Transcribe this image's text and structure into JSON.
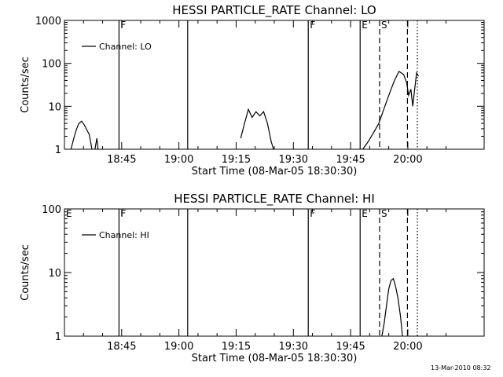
{
  "chart_data": [
    {
      "type": "line",
      "title": "HESSI PARTICLE_RATE Channel: LO",
      "xlabel": "Start Time (08-Mar-05 18:30:30)",
      "ylabel": "Counts/sec",
      "yscale": "log",
      "xlim_min": [
        0,
        110
      ],
      "ylim": [
        1,
        1000
      ],
      "yticks": [
        {
          "value": 1,
          "label": "1"
        },
        {
          "value": 10,
          "label": "10"
        },
        {
          "value": 100,
          "label": "100"
        },
        {
          "value": 1000,
          "label": "1000"
        }
      ],
      "xticks": [
        {
          "value": 15,
          "label": "18:45"
        },
        {
          "value": 30,
          "label": "19:00"
        },
        {
          "value": 45,
          "label": "19:15"
        },
        {
          "value": 60,
          "label": "19:30"
        },
        {
          "value": 75,
          "label": "19:45"
        },
        {
          "value": 90,
          "label": "20:00"
        }
      ],
      "legend": {
        "label": "Channel: LO",
        "position": "top-left"
      },
      "markers": [
        {
          "x": 14.3,
          "style": "solid",
          "label": "F"
        },
        {
          "x": 32.3,
          "style": "solid",
          "label": ""
        },
        {
          "x": 63.9,
          "style": "solid",
          "label": "F"
        },
        {
          "x": 77.5,
          "style": "solid",
          "label": "E"
        },
        {
          "x": 82.6,
          "style": "dashed",
          "label": "S"
        },
        {
          "x": 89.9,
          "style": "dashed",
          "label": ""
        },
        {
          "x": 92.5,
          "style": "dotted",
          "label": ""
        }
      ],
      "series": [
        {
          "name": "",
          "points": [
            [
              1.7,
              1
            ],
            [
              2.6,
              2
            ],
            [
              3.2,
              3
            ],
            [
              3.8,
              4
            ],
            [
              4.5,
              4.5
            ],
            [
              5.2,
              3.7
            ],
            [
              5.7,
              3
            ],
            [
              6.5,
              2.2
            ],
            [
              7.2,
              1
            ]
          ]
        },
        {
          "name": "",
          "points": [
            [
              8.0,
              1
            ],
            [
              8.5,
              1.8
            ],
            [
              8.8,
              1
            ]
          ]
        },
        {
          "name": "",
          "points": [
            [
              46.2,
              1.8
            ],
            [
              47.2,
              4
            ],
            [
              48.2,
              8.5
            ],
            [
              49.2,
              5.5
            ],
            [
              50.2,
              7.5
            ],
            [
              51.2,
              6
            ],
            [
              52.2,
              7.5
            ],
            [
              53.2,
              4
            ],
            [
              54.2,
              1.5
            ],
            [
              54.8,
              1
            ]
          ]
        },
        {
          "name": "",
          "points": [
            [
              78.2,
              1
            ],
            [
              79.6,
              1.5
            ],
            [
              81.1,
              2.5
            ],
            [
              82.4,
              4
            ],
            [
              83.8,
              9
            ],
            [
              85.2,
              20
            ],
            [
              86.5,
              40
            ],
            [
              87.7,
              65
            ],
            [
              88.9,
              55
            ],
            [
              89.7,
              35
            ],
            [
              90.2,
              18
            ],
            [
              90.8,
              25
            ],
            [
              91.3,
              10
            ],
            [
              91.8,
              25
            ],
            [
              92.3,
              60
            ],
            [
              92.8,
              50
            ]
          ]
        }
      ]
    },
    {
      "type": "line",
      "title": "HESSI PARTICLE_RATE Channel: HI",
      "xlabel": "Start Time (08-Mar-05 18:30:30)",
      "ylabel": "Counts/sec",
      "yscale": "log",
      "xlim_min": [
        0,
        110
      ],
      "ylim": [
        1,
        100
      ],
      "yticks": [
        {
          "value": 1,
          "label": "1"
        },
        {
          "value": 10,
          "label": "10"
        },
        {
          "value": 100,
          "label": "100"
        }
      ],
      "xticks": [
        {
          "value": 15,
          "label": "18:45"
        },
        {
          "value": 30,
          "label": "19:00"
        },
        {
          "value": 45,
          "label": "19:15"
        },
        {
          "value": 60,
          "label": "19:30"
        },
        {
          "value": 75,
          "label": "19:45"
        },
        {
          "value": 90,
          "label": "20:00"
        }
      ],
      "legend": {
        "label": "Channel: HI",
        "position": "top-left"
      },
      "markers": [
        {
          "x": 0,
          "style": "none",
          "label": "E"
        },
        {
          "x": 14.3,
          "style": "solid",
          "label": "F"
        },
        {
          "x": 32.3,
          "style": "solid",
          "label": ""
        },
        {
          "x": 63.9,
          "style": "solid",
          "label": "F"
        },
        {
          "x": 77.5,
          "style": "solid",
          "label": "E"
        },
        {
          "x": 82.6,
          "style": "dashed",
          "label": "S"
        },
        {
          "x": 89.9,
          "style": "dashed",
          "label": ""
        },
        {
          "x": 92.5,
          "style": "dotted",
          "label": ""
        }
      ],
      "series": [
        {
          "name": "",
          "points": [
            [
              83.2,
              1
            ],
            [
              83.8,
              1.6
            ],
            [
              84.4,
              3
            ],
            [
              85.0,
              5.5
            ],
            [
              85.6,
              7.5
            ],
            [
              86.2,
              8
            ],
            [
              86.8,
              6
            ],
            [
              87.4,
              4
            ],
            [
              88.1,
              2
            ],
            [
              88.6,
              1
            ]
          ]
        }
      ]
    }
  ],
  "footer": {
    "timestamp": "13-Mar-2010 08:32"
  }
}
